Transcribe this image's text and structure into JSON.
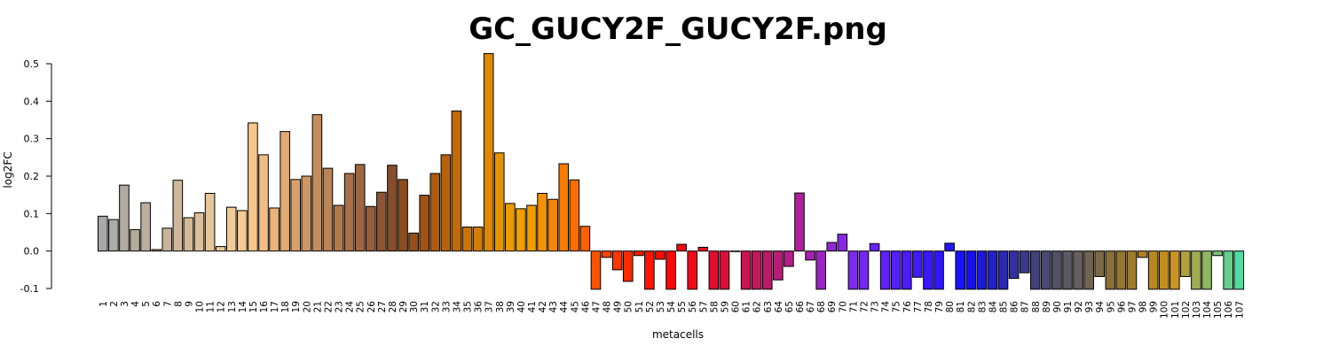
{
  "chart_data": {
    "type": "bar",
    "title": "GC_GUCY2F_GUCY2F.png",
    "xlabel": "metacells",
    "ylabel": "log2FC",
    "ylim": [
      -0.1,
      0.5
    ],
    "yticks": [
      "-0.1",
      "0.0",
      "0.1",
      "0.2",
      "0.3",
      "0.4",
      "0.5"
    ],
    "categories": [
      "1",
      "2",
      "3",
      "4",
      "5",
      "6",
      "7",
      "8",
      "9",
      "10",
      "11",
      "12",
      "13",
      "14",
      "15",
      "16",
      "17",
      "18",
      "19",
      "20",
      "21",
      "22",
      "23",
      "24",
      "25",
      "26",
      "27",
      "28",
      "29",
      "30",
      "31",
      "32",
      "33",
      "34",
      "35",
      "36",
      "37",
      "38",
      "39",
      "40",
      "41",
      "42",
      "43",
      "44",
      "45",
      "46",
      "47",
      "48",
      "49",
      "50",
      "51",
      "52",
      "53",
      "54",
      "55",
      "56",
      "57",
      "58",
      "59",
      "60",
      "61",
      "62",
      "63",
      "64",
      "65",
      "66",
      "67",
      "68",
      "69",
      "70",
      "71",
      "72",
      "73",
      "74",
      "75",
      "76",
      "77",
      "78",
      "79",
      "80",
      "81",
      "82",
      "83",
      "84",
      "85",
      "86",
      "87",
      "88",
      "89",
      "90",
      "91",
      "92",
      "93",
      "94",
      "95",
      "96",
      "97",
      "98",
      "99",
      "100",
      "101",
      "102",
      "103",
      "104",
      "105",
      "106",
      "107"
    ],
    "values": [
      0.093,
      0.084,
      0.176,
      0.057,
      0.129,
      0.004,
      0.061,
      0.189,
      0.089,
      0.102,
      0.154,
      0.012,
      0.117,
      0.108,
      0.342,
      0.257,
      0.115,
      0.319,
      0.191,
      0.2,
      0.364,
      0.221,
      0.122,
      0.207,
      0.231,
      0.119,
      0.157,
      0.229,
      0.191,
      0.048,
      0.149,
      0.207,
      0.257,
      0.374,
      0.064,
      0.064,
      0.527,
      0.262,
      0.127,
      0.113,
      0.122,
      0.154,
      0.138,
      0.233,
      0.19,
      0.066,
      -0.102,
      -0.017,
      -0.05,
      -0.081,
      -0.012,
      -0.102,
      -0.022,
      -0.102,
      0.018,
      -0.102,
      0.01,
      -0.102,
      -0.102,
      0.0,
      -0.102,
      -0.102,
      -0.102,
      -0.077,
      -0.041,
      0.155,
      -0.024,
      -0.102,
      0.023,
      0.045,
      -0.102,
      -0.102,
      0.02,
      -0.102,
      -0.102,
      -0.102,
      -0.07,
      -0.102,
      -0.102,
      0.021,
      -0.102,
      -0.102,
      -0.102,
      -0.102,
      -0.102,
      -0.073,
      -0.058,
      -0.102,
      -0.102,
      -0.102,
      -0.102,
      -0.102,
      -0.102,
      -0.068,
      -0.102,
      -0.102,
      -0.102,
      -0.017,
      -0.102,
      -0.102,
      -0.102,
      -0.068,
      -0.102,
      -0.102,
      -0.012,
      -0.102,
      -0.102
    ],
    "colors": [
      "#a8a8a8",
      "#ababab",
      "#b0aaa0",
      "#b5ab9c",
      "#bcae9e",
      "#c2b09a",
      "#c8b49a",
      "#cfb899",
      "#d4bb98",
      "#dcc09a",
      "#e5c599",
      "#ecc999",
      "#f1ca98",
      "#f5ca93",
      "#f6c68b",
      "#f1bd85",
      "#eab47c",
      "#e0aa73",
      "#d7a06b",
      "#cd9664",
      "#c48d5d",
      "#bb8356",
      "#b17a4f",
      "#a87048",
      "#9f6741",
      "#965d39",
      "#8d5533",
      "#874e2d",
      "#8a4d20",
      "#954e16",
      "#a05315",
      "#ac5b0f",
      "#b6620b",
      "#c16a06",
      "#cb7404",
      "#d57e02",
      "#de8901",
      "#e69300",
      "#ec9a00",
      "#f19f00",
      "#f49b00",
      "#f69200",
      "#f88700",
      "#f97b00",
      "#fa6e00",
      "#fb6100",
      "#fc5200",
      "#fd4300",
      "#fe3600",
      "#ff2a00",
      "#ff1e00",
      "#ff1400",
      "#ff0c05",
      "#ff0808",
      "#f8080f",
      "#f20a18",
      "#ea0c22",
      "#e20e2e",
      "#da1038",
      "#d21244",
      "#ca1550",
      "#c2185c",
      "#bb1a68",
      "#b81c76",
      "#b41e88",
      "#ac209a",
      "#a422ad",
      "#9c24c0",
      "#9226d2",
      "#8828e2",
      "#7e2aec",
      "#7426f2",
      "#6a22f6",
      "#6020f8",
      "#561efa",
      "#4c1cfb",
      "#421afc",
      "#3818fd",
      "#2e16fd",
      "#2414fe",
      "#1a12fe",
      "#1610f0",
      "#1c18dc",
      "#2420c8",
      "#2c28b4",
      "#3430a0",
      "#3c388c",
      "#44407a",
      "#4c4870",
      "#545068",
      "#5c5864",
      "#645e5e",
      "#706450",
      "#7c6a44",
      "#887038",
      "#947630",
      "#a07c28",
      "#ac8224",
      "#b88820",
      "#c48e1c",
      "#c89424",
      "#b4a03c",
      "#a0ac50",
      "#8cb864",
      "#78c478",
      "#64d08c",
      "#50dca0"
    ]
  }
}
